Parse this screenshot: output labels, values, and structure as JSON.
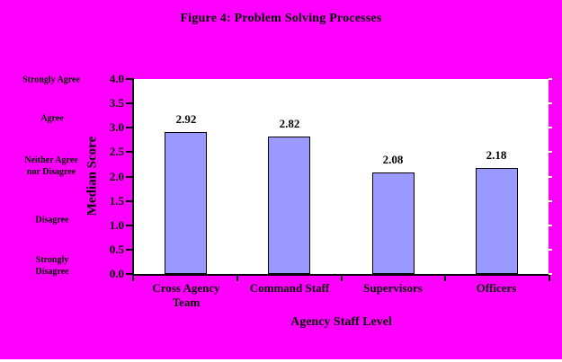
{
  "chart_data": {
    "type": "bar",
    "title": "Figure 4: Problem Solving Processes",
    "categories": [
      "Cross Agency Team",
      "Command Staff",
      "Supervisors",
      "Officers"
    ],
    "values": [
      2.92,
      2.82,
      2.08,
      2.18
    ],
    "value_labels": [
      "2.92",
      "2.82",
      "2.08",
      "2.18"
    ],
    "xlabel": "Agency Staff Level",
    "ylabel": "Median Score",
    "ylim": [
      0.0,
      4.0
    ],
    "ytick_step": 0.5,
    "ytick_labels": [
      "0.0",
      "0.5",
      "1.0",
      "1.5",
      "2.0",
      "2.5",
      "3.0",
      "3.5",
      "4.0"
    ],
    "left_scale_labels": [
      "Strongly Agree",
      "Agree",
      "Neither Agree\nnor Disagree",
      "Disagree",
      "Strongly\nDisagree"
    ],
    "grid": false,
    "legend": false,
    "colors": {
      "background": "#FF00FF",
      "plot_background": "#FFFFFF",
      "bar_fill": "#9999FF",
      "bar_border": "#000000",
      "text": "#000000",
      "axis": "#000000"
    }
  }
}
